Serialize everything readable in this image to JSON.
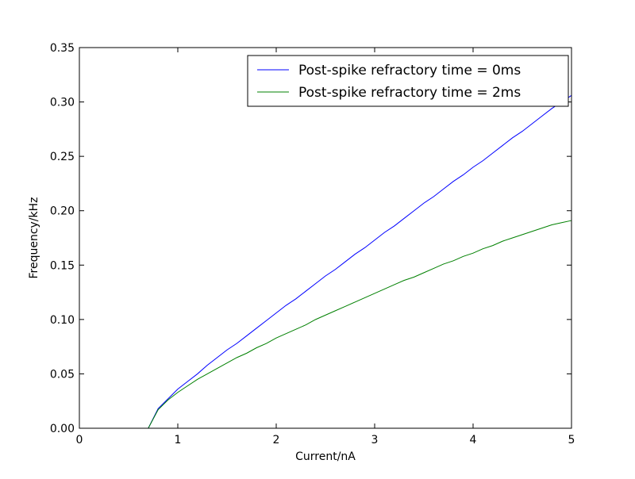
{
  "chart_data": {
    "type": "line",
    "title": "",
    "xlabel": "Current/nA",
    "ylabel": "Frequency/kHz",
    "xlim": [
      0,
      5
    ],
    "ylim": [
      0,
      0.35
    ],
    "xticks": [
      0,
      1,
      2,
      3,
      4,
      5
    ],
    "xtick_labels": [
      "0",
      "1",
      "2",
      "3",
      "4",
      "5"
    ],
    "yticks": [
      0.0,
      0.05,
      0.1,
      0.15,
      0.2,
      0.25,
      0.3,
      0.35
    ],
    "ytick_labels": [
      "0.00",
      "0.05",
      "0.10",
      "0.15",
      "0.20",
      "0.25",
      "0.30",
      "0.35"
    ],
    "grid": false,
    "legend_position": "top-right",
    "x": [
      0.1,
      0.2,
      0.3,
      0.4,
      0.5,
      0.6,
      0.7,
      0.8,
      0.9,
      1.0,
      1.1,
      1.2,
      1.3,
      1.4,
      1.5,
      1.6,
      1.7,
      1.8,
      1.9,
      2.0,
      2.1,
      2.2,
      2.3,
      2.4,
      2.5,
      2.6,
      2.7,
      2.8,
      2.9,
      3.0,
      3.1,
      3.2,
      3.3,
      3.4,
      3.5,
      3.6,
      3.7,
      3.8,
      3.9,
      4.0,
      4.1,
      4.2,
      4.3,
      4.4,
      4.5,
      4.6,
      4.7,
      4.8,
      4.9,
      5.0
    ],
    "series": [
      {
        "name": "Post-spike refractory time = 0ms",
        "color": "#0000ff",
        "values": [
          0,
          0,
          0,
          0,
          0,
          0,
          0,
          0.018,
          0.027,
          0.036,
          0.043,
          0.05,
          0.058,
          0.065,
          0.072,
          0.078,
          0.085,
          0.092,
          0.099,
          0.106,
          0.113,
          0.119,
          0.126,
          0.133,
          0.14,
          0.146,
          0.153,
          0.16,
          0.166,
          0.173,
          0.18,
          0.186,
          0.193,
          0.2,
          0.207,
          0.213,
          0.22,
          0.227,
          0.233,
          0.24,
          0.246,
          0.253,
          0.26,
          0.267,
          0.273,
          0.28,
          0.287,
          0.294,
          0.3,
          0.306
        ]
      },
      {
        "name": "Post-spike refractory time = 2ms",
        "color": "#008000",
        "values": [
          0,
          0,
          0,
          0,
          0,
          0,
          0,
          0.017,
          0.026,
          0.033,
          0.039,
          0.045,
          0.05,
          0.055,
          0.06,
          0.065,
          0.069,
          0.074,
          0.078,
          0.083,
          0.087,
          0.091,
          0.095,
          0.1,
          0.104,
          0.108,
          0.112,
          0.116,
          0.12,
          0.124,
          0.128,
          0.132,
          0.136,
          0.139,
          0.143,
          0.147,
          0.151,
          0.154,
          0.158,
          0.161,
          0.165,
          0.168,
          0.172,
          0.175,
          0.178,
          0.181,
          0.184,
          0.187,
          0.189,
          0.191
        ]
      }
    ]
  }
}
